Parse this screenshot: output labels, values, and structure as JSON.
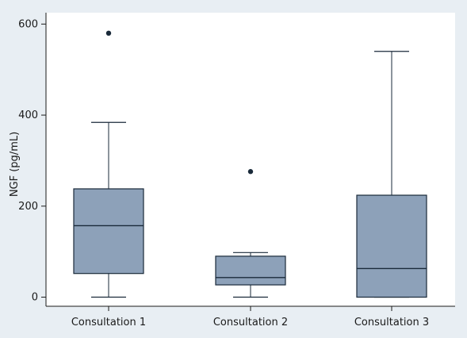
{
  "chart_data": {
    "type": "boxplot",
    "title": "",
    "xlabel": "",
    "ylabel": "NGF (pg/mL)",
    "ylim": [
      -20,
      625
    ],
    "yticks": [
      0,
      200,
      400,
      600
    ],
    "ytick_labels": [
      "0",
      "200",
      "400",
      "600"
    ],
    "grid": false,
    "categories": [
      "Consultation 1",
      "Consultation 2",
      "Consultation 3"
    ],
    "boxes": [
      {
        "category": "Consultation 1",
        "whisker_low": 0,
        "q1": 52,
        "median": 157,
        "q3": 238,
        "whisker_high": 384,
        "outliers": [
          580
        ]
      },
      {
        "category": "Consultation 2",
        "whisker_low": 0,
        "q1": 27,
        "median": 43,
        "q3": 90,
        "whisker_high": 98,
        "outliers": [
          276
        ]
      },
      {
        "category": "Consultation 3",
        "whisker_low": 0,
        "q1": 0,
        "median": 63,
        "q3": 224,
        "whisker_high": 540,
        "outliers": []
      }
    ],
    "colors": {
      "outer_background": "#e8eef3",
      "plot_background": "#ffffff",
      "box_fill": "#8da1b9",
      "box_stroke": "#1a2a3a",
      "outlier": "#1a2a3a"
    }
  }
}
